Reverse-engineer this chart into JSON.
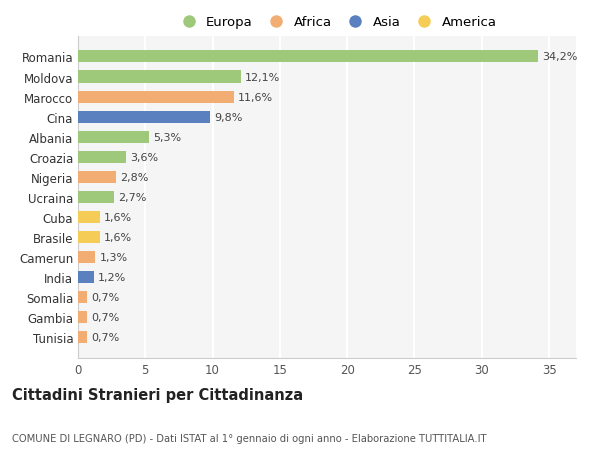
{
  "countries": [
    "Tunisia",
    "Gambia",
    "Somalia",
    "India",
    "Camerun",
    "Brasile",
    "Cuba",
    "Ucraina",
    "Nigeria",
    "Croazia",
    "Albania",
    "Cina",
    "Marocco",
    "Moldova",
    "Romania"
  ],
  "values": [
    0.7,
    0.7,
    0.7,
    1.2,
    1.3,
    1.6,
    1.6,
    2.7,
    2.8,
    3.6,
    5.3,
    9.8,
    11.6,
    12.1,
    34.2
  ],
  "labels": [
    "0,7%",
    "0,7%",
    "0,7%",
    "1,2%",
    "1,3%",
    "1,6%",
    "1,6%",
    "2,7%",
    "2,8%",
    "3,6%",
    "5,3%",
    "9,8%",
    "11,6%",
    "12,1%",
    "34,2%"
  ],
  "colors": [
    "#f2ae72",
    "#f2ae72",
    "#f2ae72",
    "#5b80c0",
    "#f2ae72",
    "#f5cc55",
    "#f5cc55",
    "#9ec97a",
    "#f2ae72",
    "#9ec97a",
    "#9ec97a",
    "#5b80c0",
    "#f2ae72",
    "#9ec97a",
    "#9ec97a"
  ],
  "legend_labels": [
    "Europa",
    "Africa",
    "Asia",
    "America"
  ],
  "legend_colors": [
    "#9ec97a",
    "#f2ae72",
    "#5b80c0",
    "#f5cc55"
  ],
  "title": "Cittadini Stranieri per Cittadinanza",
  "subtitle": "COMUNE DI LEGNARO (PD) - Dati ISTAT al 1° gennaio di ogni anno - Elaborazione TUTTITALIA.IT",
  "xlim": [
    0,
    37
  ],
  "background_color": "#ffffff",
  "plot_bg_color": "#f5f5f5",
  "grid_color": "#ffffff",
  "bar_height": 0.6,
  "bar_alpha": 1.0
}
